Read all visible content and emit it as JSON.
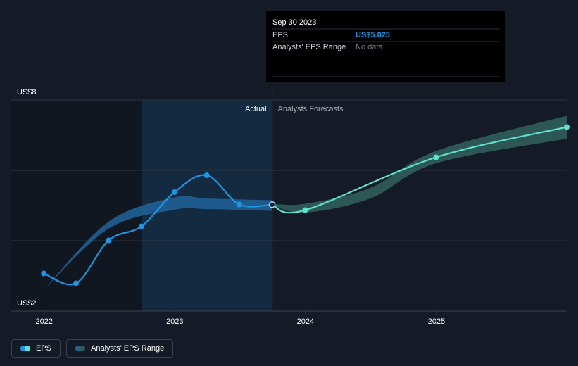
{
  "tooltip": {
    "date": "Sep 30 2023",
    "rows": [
      {
        "key": "EPS",
        "value": "US$5.025"
      },
      {
        "key": "Analysts' EPS Range",
        "value": "No data"
      }
    ]
  },
  "regions": {
    "actual": "Actual",
    "forecast": "Analysts Forecasts"
  },
  "legend": [
    {
      "label": "EPS",
      "colors": [
        "#2394df",
        "#60e0cf"
      ]
    },
    {
      "label": "Analysts' EPS Range",
      "colors": [
        "#2a5f86",
        "#2f5e5a"
      ]
    }
  ],
  "colors": {
    "eps_actual": "#2394df",
    "eps_forecast": "#60e0cf",
    "range_actual": "#1f5f93",
    "range_forecast": "#2f5e5a"
  },
  "chart_data": {
    "type": "line",
    "ylim": [
      2,
      8
    ],
    "y_tick_labels": [
      {
        "value": 8,
        "label": "US$8"
      },
      {
        "value": 2,
        "label": "US$2"
      }
    ],
    "gridlines": [
      8,
      6,
      4
    ],
    "xlim": [
      "2021-10-01",
      "2025-12-31"
    ],
    "x_tick_labels": [
      {
        "date": "2022-01-01",
        "label": "2022"
      },
      {
        "date": "2023-01-01",
        "label": "2023"
      },
      {
        "date": "2024-01-01",
        "label": "2024"
      },
      {
        "date": "2025-01-01",
        "label": "2025"
      }
    ],
    "past_shade_start": "2022-10-01",
    "actual_forecast_split": "2023-09-30",
    "series": [
      {
        "name": "EPS",
        "points": [
          {
            "date": "2021-12-31",
            "value": 3.07
          },
          {
            "date": "2022-03-31",
            "value": 2.79
          },
          {
            "date": "2022-06-30",
            "value": 4.01
          },
          {
            "date": "2022-09-30",
            "value": 4.41
          },
          {
            "date": "2022-12-31",
            "value": 5.38
          },
          {
            "date": "2023-03-31",
            "value": 5.86
          },
          {
            "date": "2023-06-30",
            "value": 5.03
          },
          {
            "date": "2023-09-30",
            "value": 5.025
          }
        ]
      },
      {
        "name": "EPS Forecast",
        "points": [
          {
            "date": "2023-09-30",
            "value": 5.025
          },
          {
            "date": "2023-12-31",
            "value": 4.87
          },
          {
            "date": "2024-12-31",
            "value": 6.37
          },
          {
            "date": "2025-12-31",
            "value": 7.23
          }
        ]
      }
    ],
    "range_actual": {
      "points": [
        {
          "date": "2022-01-01",
          "low": 2.62,
          "high": 2.62
        },
        {
          "date": "2022-07-01",
          "low": 4.35,
          "high": 4.55
        },
        {
          "date": "2022-12-31",
          "low": 4.88,
          "high": 5.23
        },
        {
          "date": "2023-03-31",
          "low": 4.9,
          "high": 5.2
        },
        {
          "date": "2023-09-30",
          "low": 4.85,
          "high": 5.15
        }
      ]
    },
    "range_forecast": {
      "points": [
        {
          "date": "2023-09-30",
          "low": 5.0,
          "high": 5.05
        },
        {
          "date": "2023-12-31",
          "low": 4.8,
          "high": 5.05
        },
        {
          "date": "2024-06-30",
          "low": 5.2,
          "high": 5.5
        },
        {
          "date": "2024-12-31",
          "low": 6.2,
          "high": 6.55
        },
        {
          "date": "2025-12-31",
          "low": 6.9,
          "high": 7.55
        }
      ]
    }
  }
}
